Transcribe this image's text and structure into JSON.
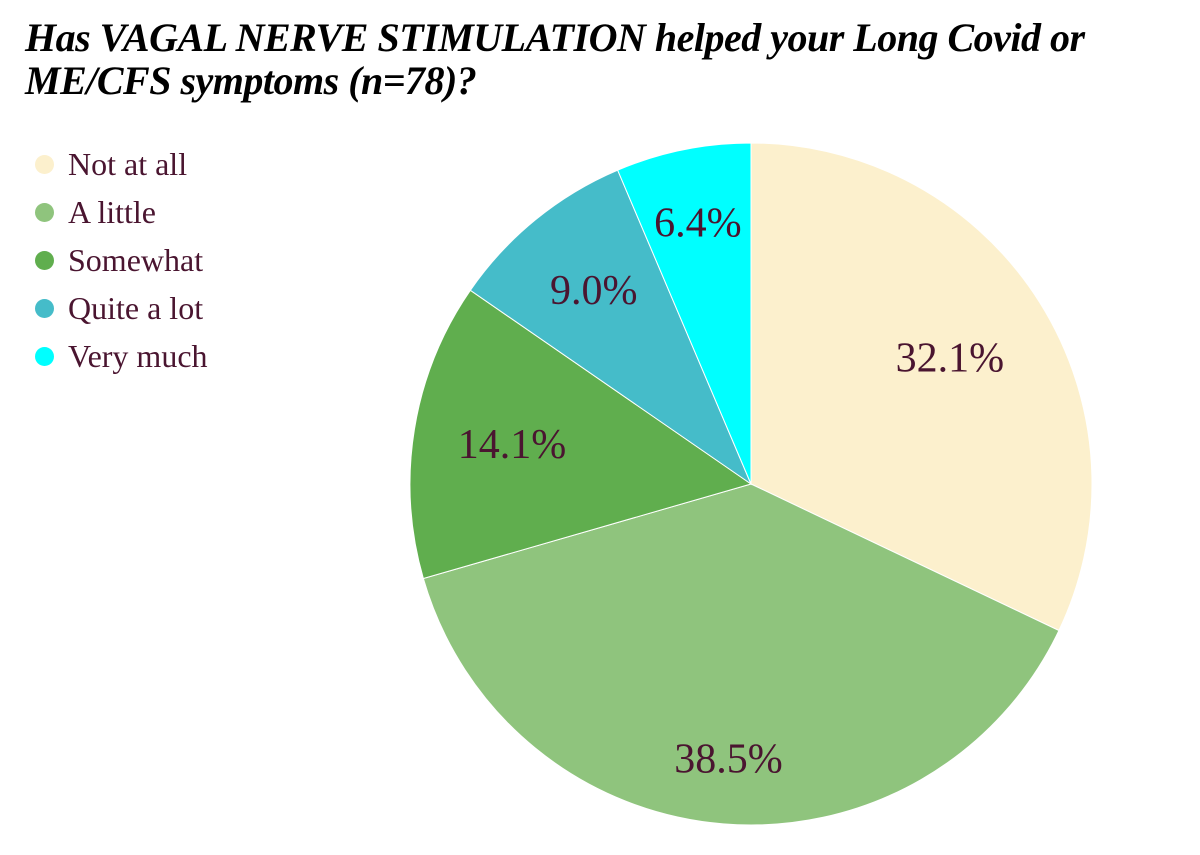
{
  "title": {
    "full": "Has VAGAL NERVE STIMULATION helped your Long Covid or ME/CFS symptoms (n=78)?",
    "line1": "Has VAGAL NERVE STIMULATION helped your Long Covid or",
    "line2": "ME/CFS symptoms (n=78)?"
  },
  "legend": {
    "position": "left",
    "items": [
      {
        "label": "Not at all",
        "color": "#fcf0cd"
      },
      {
        "label": "A little",
        "color": "#8fc47d"
      },
      {
        "label": "Somewhat",
        "color": "#60ae4e"
      },
      {
        "label": "Quite a lot",
        "color": "#45bcc9"
      },
      {
        "label": "Very much",
        "color": "#00ffff"
      }
    ]
  },
  "chart_data": {
    "type": "pie",
    "title": "Has VAGAL NERVE STIMULATION helped your Long Covid or ME/CFS symptoms (n=78)?",
    "sample_size": 78,
    "start_angle": "12 o'clock",
    "direction": "clockwise",
    "legend_position": "left",
    "label_color": "#4a1530",
    "background": "#ffffff",
    "slices": [
      {
        "label": "Not at all",
        "value": 32.1,
        "display": "32.1%",
        "color": "#fcf0cd"
      },
      {
        "label": "A little",
        "value": 38.5,
        "display": "38.5%",
        "color": "#8fc47d"
      },
      {
        "label": "Somewhat",
        "value": 14.1,
        "display": "14.1%",
        "color": "#60ae4e"
      },
      {
        "label": "Quite a lot",
        "value": 9.0,
        "display": "9.0%",
        "color": "#45bcc9"
      },
      {
        "label": "Very much",
        "value": 6.4,
        "display": "6.4%",
        "color": "#00ffff"
      }
    ]
  }
}
